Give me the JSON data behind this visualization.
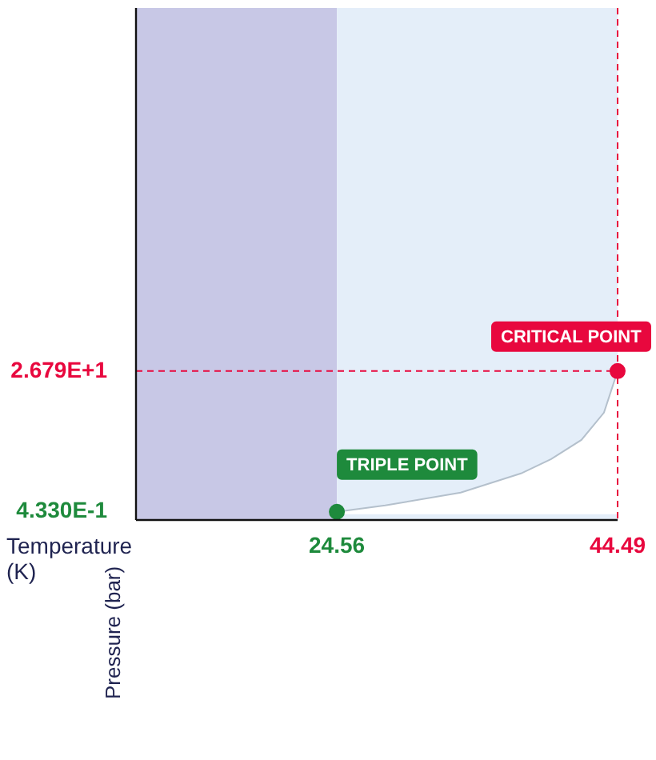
{
  "chart_data": {
    "type": "line",
    "xlabel": "Temperature (K)",
    "ylabel": "Pressure (bar)",
    "xlim": [
      10.3,
      44.49
    ],
    "ylim": [
      -1.1,
      94.8
    ],
    "xticks": [
      24.56,
      44.49
    ],
    "yticks": [
      {
        "value": 0.433,
        "label": "4.330E-1"
      },
      {
        "value": 26.79,
        "label": "2.679E+1"
      }
    ],
    "grid": false,
    "legend": false,
    "series": [
      {
        "type": "area",
        "color": "#ffffff",
        "x": [
          24.56,
          27.99,
          33.35,
          37.63,
          39.77,
          41.92,
          43.52,
          44.49
        ],
        "values": [
          0.433,
          1.63,
          4.03,
          7.62,
          10.32,
          13.9,
          19.0,
          26.79
        ]
      },
      {
        "type": "scatter",
        "color": "#1e8a3c",
        "x": [
          24.56
        ],
        "values": [
          0.433
        ]
      },
      {
        "type": "scatter",
        "color": "#e8083e",
        "x": [
          44.49
        ],
        "values": [
          26.79
        ]
      }
    ],
    "bands": [
      {
        "axis": "x",
        "from": 10.3,
        "to": 24.56,
        "color": "#c8c8e6"
      },
      {
        "axis": "x",
        "from": 24.56,
        "to": 44.49,
        "color": "#e4eef9"
      }
    ],
    "ref_lines": [
      {
        "axis": "y",
        "value": 26.79,
        "color": "#e8083e",
        "line_style": "dashed"
      },
      {
        "axis": "x",
        "value": 44.49,
        "color": "#e8083e",
        "line_style": "dashed"
      }
    ],
    "annotations": [
      {
        "text": "TRIPLE POINT",
        "x": 24.56,
        "y": 0.433
      },
      {
        "text": "CRITICAL POINT",
        "x": 44.49,
        "y": 26.79
      }
    ]
  }
}
